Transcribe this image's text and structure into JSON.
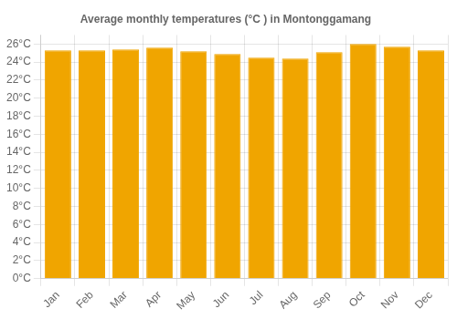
{
  "chart_data": {
    "type": "bar",
    "title": "Average monthly temperatures (°C ) in Montonggamang",
    "categories": [
      "Jan",
      "Feb",
      "Mar",
      "Apr",
      "May",
      "Jun",
      "Jul",
      "Aug",
      "Sep",
      "Oct",
      "Nov",
      "Dec"
    ],
    "values": [
      25.3,
      25.3,
      25.4,
      25.6,
      25.2,
      24.9,
      24.5,
      24.4,
      25.1,
      26.0,
      25.7,
      25.3
    ],
    "color": "#F0A500",
    "ylim": [
      0,
      27
    ],
    "yticks": [
      {
        "value": 0,
        "label": "0°C"
      },
      {
        "value": 2,
        "label": "2°C"
      },
      {
        "value": 4,
        "label": "4°C"
      },
      {
        "value": 6,
        "label": "6°C"
      },
      {
        "value": 8,
        "label": "8°C"
      },
      {
        "value": 10,
        "label": "10°C"
      },
      {
        "value": 12,
        "label": "12°C"
      },
      {
        "value": 14,
        "label": "14°C"
      },
      {
        "value": 16,
        "label": "16°C"
      },
      {
        "value": 18,
        "label": "18°C"
      },
      {
        "value": 20,
        "label": "20°C"
      },
      {
        "value": 22,
        "label": "22°C"
      },
      {
        "value": 24,
        "label": "24°C"
      },
      {
        "value": 26,
        "label": "26°C"
      }
    ],
    "grid": true
  }
}
